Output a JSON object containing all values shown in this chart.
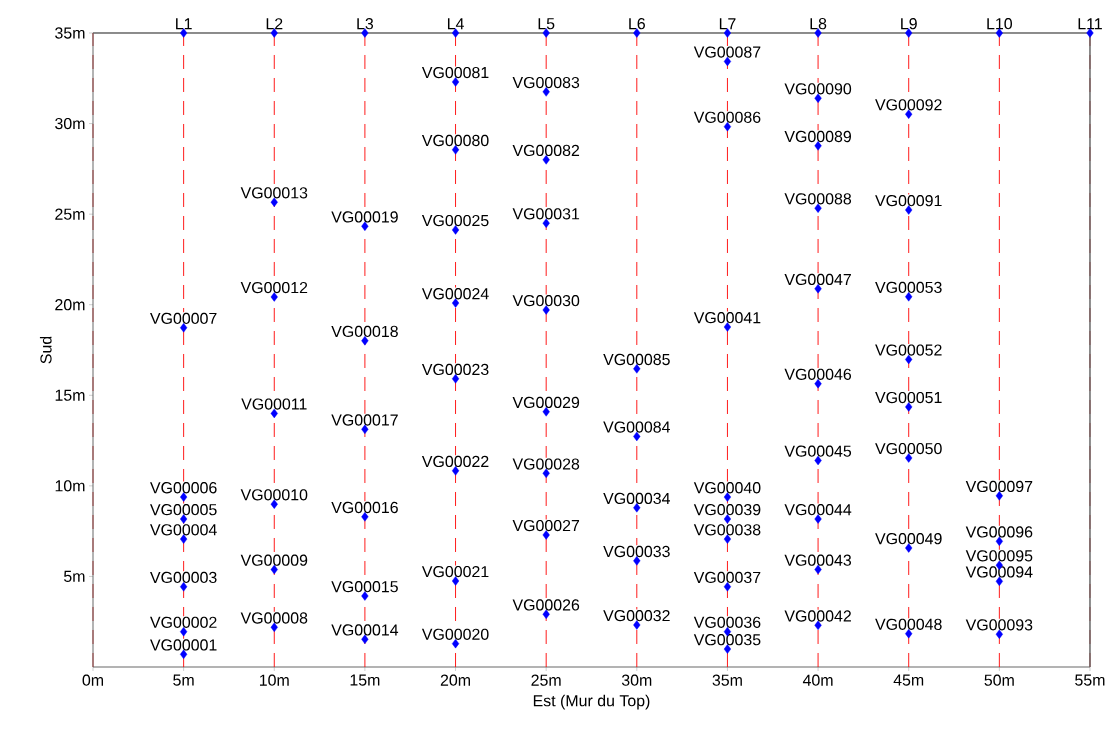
{
  "chart_data": {
    "type": "scatter",
    "xlabel": "Est (Mur du Top)",
    "ylabel": "Sud",
    "xlim": [
      0,
      55
    ],
    "ylim": [
      0,
      35
    ],
    "xticks": [
      {
        "value": 0,
        "label": "0m"
      },
      {
        "value": 5,
        "label": "5m"
      },
      {
        "value": 10,
        "label": "10m"
      },
      {
        "value": 15,
        "label": "15m"
      },
      {
        "value": 20,
        "label": "20m"
      },
      {
        "value": 25,
        "label": "25m"
      },
      {
        "value": 30,
        "label": "30m"
      },
      {
        "value": 35,
        "label": "35m"
      },
      {
        "value": 40,
        "label": "40m"
      },
      {
        "value": 45,
        "label": "45m"
      },
      {
        "value": 50,
        "label": "50m"
      },
      {
        "value": 55,
        "label": "55m"
      }
    ],
    "yticks": [
      {
        "value": 5,
        "label": "5m"
      },
      {
        "value": 10,
        "label": "10m"
      },
      {
        "value": 15,
        "label": "15m"
      },
      {
        "value": 20,
        "label": "20m"
      },
      {
        "value": 25,
        "label": "25m"
      },
      {
        "value": 30,
        "label": "30m"
      },
      {
        "value": 35,
        "label": "35m"
      }
    ],
    "grid": false,
    "marker": "diamond",
    "series": [
      {
        "color": "#0000ff",
        "x": [
          5,
          5,
          5,
          5,
          5,
          5,
          5,
          10,
          10,
          10,
          10,
          10,
          10,
          15,
          15,
          15,
          15,
          15,
          15,
          20,
          20,
          20,
          20,
          20,
          20,
          20,
          20,
          25,
          25,
          25,
          25,
          25,
          25,
          25,
          25,
          30,
          30,
          30,
          30,
          30,
          35,
          35,
          35,
          35,
          35,
          35,
          35,
          35,
          35,
          40,
          40,
          40,
          40,
          40,
          40,
          40,
          40,
          40,
          45,
          45,
          45,
          45,
          45,
          45,
          45,
          45,
          50,
          50,
          50,
          50,
          50
        ],
        "values": [
          0.7,
          1.95,
          4.43,
          7.06,
          8.17,
          9.38,
          18.73,
          2.19,
          5.38,
          8.99,
          14.0,
          20.43,
          25.66,
          1.53,
          3.92,
          8.29,
          13.12,
          18.01,
          24.33,
          1.29,
          4.75,
          10.83,
          15.91,
          20.09,
          24.13,
          28.55,
          32.3,
          2.91,
          7.29,
          10.69,
          14.09,
          19.71,
          24.5,
          28.0,
          31.75,
          2.32,
          5.86,
          8.79,
          12.73,
          16.46,
          0.99,
          1.95,
          4.43,
          7.06,
          8.17,
          9.38,
          18.77,
          29.83,
          33.43,
          2.3,
          5.38,
          8.17,
          11.4,
          15.64,
          20.88,
          25.33,
          28.77,
          31.4,
          1.84,
          6.57,
          11.54,
          14.36,
          16.98,
          20.44,
          25.23,
          30.52,
          1.81,
          4.73,
          5.62,
          6.94,
          9.45
        ]
      },
      {
        "color": "#0000ff",
        "x": [
          5,
          10,
          15,
          20,
          25,
          30,
          35,
          40,
          45,
          50,
          55
        ],
        "values": [
          35,
          35,
          35,
          35,
          35,
          35,
          35,
          35,
          35,
          35,
          35
        ]
      }
    ],
    "ref_lines": [
      {
        "axis": "x",
        "value": 0,
        "color": "#993333",
        "line_style": "dashed"
      },
      {
        "axis": "x",
        "value": 5,
        "color": "#ff0000",
        "line_style": "dashed"
      },
      {
        "axis": "x",
        "value": 10,
        "color": "#ff0000",
        "line_style": "dashed"
      },
      {
        "axis": "x",
        "value": 15,
        "color": "#ff0000",
        "line_style": "dashed"
      },
      {
        "axis": "x",
        "value": 20,
        "color": "#ff0000",
        "line_style": "dashed"
      },
      {
        "axis": "x",
        "value": 25,
        "color": "#ff0000",
        "line_style": "dashed"
      },
      {
        "axis": "x",
        "value": 30,
        "color": "#ff0000",
        "line_style": "dashed"
      },
      {
        "axis": "x",
        "value": 35,
        "color": "#ff0000",
        "line_style": "dashed"
      },
      {
        "axis": "x",
        "value": 40,
        "color": "#ff0000",
        "line_style": "dashed"
      },
      {
        "axis": "x",
        "value": 45,
        "color": "#ff0000",
        "line_style": "dashed"
      },
      {
        "axis": "x",
        "value": 50,
        "color": "#ff0000",
        "line_style": "dashed"
      },
      {
        "axis": "x",
        "value": 55,
        "color": "#993333",
        "line_style": "dashed"
      }
    ],
    "annotations": [
      {
        "text": "VG00001",
        "x": 5,
        "y": 0.7
      },
      {
        "text": "VG00002",
        "x": 5,
        "y": 1.95
      },
      {
        "text": "VG00003",
        "x": 5,
        "y": 4.43
      },
      {
        "text": "VG00004",
        "x": 5,
        "y": 7.06
      },
      {
        "text": "VG00005",
        "x": 5,
        "y": 8.17
      },
      {
        "text": "VG00006",
        "x": 5,
        "y": 9.38
      },
      {
        "text": "VG00007",
        "x": 5,
        "y": 18.73
      },
      {
        "text": "VG00008",
        "x": 10,
        "y": 2.19
      },
      {
        "text": "VG00009",
        "x": 10,
        "y": 5.38
      },
      {
        "text": "VG00010",
        "x": 10,
        "y": 8.99
      },
      {
        "text": "VG00011",
        "x": 10,
        "y": 14.0
      },
      {
        "text": "VG00012",
        "x": 10,
        "y": 20.43
      },
      {
        "text": "VG00013",
        "x": 10,
        "y": 25.66
      },
      {
        "text": "VG00014",
        "x": 15,
        "y": 1.53
      },
      {
        "text": "VG00015",
        "x": 15,
        "y": 3.92
      },
      {
        "text": "VG00016",
        "x": 15,
        "y": 8.29
      },
      {
        "text": "VG00017",
        "x": 15,
        "y": 13.12
      },
      {
        "text": "VG00018",
        "x": 15,
        "y": 18.01
      },
      {
        "text": "VG00019",
        "x": 15,
        "y": 24.33
      },
      {
        "text": "VG00020",
        "x": 20,
        "y": 1.29
      },
      {
        "text": "VG00021",
        "x": 20,
        "y": 4.75
      },
      {
        "text": "VG00022",
        "x": 20,
        "y": 10.83
      },
      {
        "text": "VG00023",
        "x": 20,
        "y": 15.91
      },
      {
        "text": "VG00024",
        "x": 20,
        "y": 20.09
      },
      {
        "text": "VG00025",
        "x": 20,
        "y": 24.13
      },
      {
        "text": "VG00080",
        "x": 20,
        "y": 28.55
      },
      {
        "text": "VG00081",
        "x": 20,
        "y": 32.3
      },
      {
        "text": "VG00026",
        "x": 25,
        "y": 2.91
      },
      {
        "text": "VG00027",
        "x": 25,
        "y": 7.29
      },
      {
        "text": "VG00028",
        "x": 25,
        "y": 10.69
      },
      {
        "text": "VG00029",
        "x": 25,
        "y": 14.09
      },
      {
        "text": "VG00030",
        "x": 25,
        "y": 19.71
      },
      {
        "text": "VG00031",
        "x": 25,
        "y": 24.5
      },
      {
        "text": "VG00082",
        "x": 25,
        "y": 28.0
      },
      {
        "text": "VG00083",
        "x": 25,
        "y": 31.75
      },
      {
        "text": "VG00032",
        "x": 30,
        "y": 2.32
      },
      {
        "text": "VG00033",
        "x": 30,
        "y": 5.86
      },
      {
        "text": "VG00034",
        "x": 30,
        "y": 8.79
      },
      {
        "text": "VG00084",
        "x": 30,
        "y": 12.73
      },
      {
        "text": "VG00085",
        "x": 30,
        "y": 16.46
      },
      {
        "text": "VG00035",
        "x": 35,
        "y": 0.99
      },
      {
        "text": "VG00036",
        "x": 35,
        "y": 1.95
      },
      {
        "text": "VG00037",
        "x": 35,
        "y": 4.43
      },
      {
        "text": "VG00038",
        "x": 35,
        "y": 7.06
      },
      {
        "text": "VG00039",
        "x": 35,
        "y": 8.17
      },
      {
        "text": "VG00040",
        "x": 35,
        "y": 9.38
      },
      {
        "text": "VG00041",
        "x": 35,
        "y": 18.77
      },
      {
        "text": "VG00086",
        "x": 35,
        "y": 29.83
      },
      {
        "text": "VG00087",
        "x": 35,
        "y": 33.43
      },
      {
        "text": "VG00042",
        "x": 40,
        "y": 2.3
      },
      {
        "text": "VG00043",
        "x": 40,
        "y": 5.38
      },
      {
        "text": "VG00044",
        "x": 40,
        "y": 8.17
      },
      {
        "text": "VG00045",
        "x": 40,
        "y": 11.4
      },
      {
        "text": "VG00046",
        "x": 40,
        "y": 15.64
      },
      {
        "text": "VG00047",
        "x": 40,
        "y": 20.88
      },
      {
        "text": "VG00088",
        "x": 40,
        "y": 25.33
      },
      {
        "text": "VG00089",
        "x": 40,
        "y": 28.77
      },
      {
        "text": "VG00090",
        "x": 40,
        "y": 31.4
      },
      {
        "text": "VG00048",
        "x": 45,
        "y": 1.84
      },
      {
        "text": "VG00049",
        "x": 45,
        "y": 6.57
      },
      {
        "text": "VG00050",
        "x": 45,
        "y": 11.54
      },
      {
        "text": "VG00051",
        "x": 45,
        "y": 14.36
      },
      {
        "text": "VG00052",
        "x": 45,
        "y": 16.98
      },
      {
        "text": "VG00053",
        "x": 45,
        "y": 20.44
      },
      {
        "text": "VG00091",
        "x": 45,
        "y": 25.23
      },
      {
        "text": "VG00092",
        "x": 45,
        "y": 30.52
      },
      {
        "text": "VG00093",
        "x": 50,
        "y": 1.81
      },
      {
        "text": "VG00094",
        "x": 50,
        "y": 4.73
      },
      {
        "text": "VG00095",
        "x": 50,
        "y": 5.62
      },
      {
        "text": "VG00096",
        "x": 50,
        "y": 6.94
      },
      {
        "text": "VG00097",
        "x": 50,
        "y": 9.45
      },
      {
        "text": "L1",
        "x": 5,
        "y": 35
      },
      {
        "text": "L2",
        "x": 10,
        "y": 35
      },
      {
        "text": "L3",
        "x": 15,
        "y": 35
      },
      {
        "text": "L4",
        "x": 20,
        "y": 35
      },
      {
        "text": "L5",
        "x": 25,
        "y": 35
      },
      {
        "text": "L6",
        "x": 30,
        "y": 35
      },
      {
        "text": "L7",
        "x": 35,
        "y": 35
      },
      {
        "text": "L8",
        "x": 40,
        "y": 35
      },
      {
        "text": "L9",
        "x": 45,
        "y": 35
      },
      {
        "text": "L10",
        "x": 50,
        "y": 35
      },
      {
        "text": "L11",
        "x": 55,
        "y": 35
      }
    ]
  }
}
